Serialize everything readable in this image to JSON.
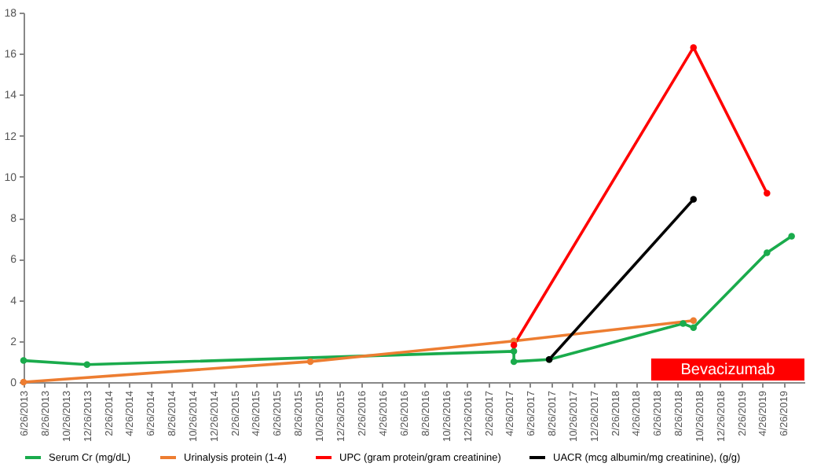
{
  "chart_data": {
    "type": "line",
    "marker": "circle",
    "legend": "bottom",
    "xlim": [
      "2013-06-26",
      "2019-08-26"
    ],
    "xticks": [
      {
        "value": "2013-06-26",
        "label": "6/26/2013"
      },
      {
        "value": "2013-08-26",
        "label": "8/26/2013"
      },
      {
        "value": "2013-10-26",
        "label": "10/26/2013"
      },
      {
        "value": "2013-12-26",
        "label": "12/26/2013"
      },
      {
        "value": "2014-02-26",
        "label": "2/26/2014"
      },
      {
        "value": "2014-04-26",
        "label": "4/26/2014"
      },
      {
        "value": "2014-06-26",
        "label": "6/26/2014"
      },
      {
        "value": "2014-08-26",
        "label": "8/26/2014"
      },
      {
        "value": "2014-10-26",
        "label": "10/26/2014"
      },
      {
        "value": "2014-12-26",
        "label": "12/26/2014"
      },
      {
        "value": "2015-02-26",
        "label": "2/26/2015"
      },
      {
        "value": "2015-04-26",
        "label": "4/26/2015"
      },
      {
        "value": "2015-06-26",
        "label": "6/26/2015"
      },
      {
        "value": "2015-08-26",
        "label": "8/26/2015"
      },
      {
        "value": "2015-10-26",
        "label": "10/26/2015"
      },
      {
        "value": "2015-12-26",
        "label": "12/26/2015"
      },
      {
        "value": "2016-02-26",
        "label": "2/26/2016"
      },
      {
        "value": "2016-04-26",
        "label": "4/26/2016"
      },
      {
        "value": "2016-06-26",
        "label": "6/26/2016"
      },
      {
        "value": "2016-08-26",
        "label": "8/26/2016"
      },
      {
        "value": "2016-10-26",
        "label": "10/26/2016"
      },
      {
        "value": "2016-12-26",
        "label": "12/26/2016"
      },
      {
        "value": "2017-02-26",
        "label": "2/26/2017"
      },
      {
        "value": "2017-04-26",
        "label": "4/26/2017"
      },
      {
        "value": "2017-06-26",
        "label": "6/26/2017"
      },
      {
        "value": "2017-08-26",
        "label": "8/26/2017"
      },
      {
        "value": "2017-10-26",
        "label": "10/26/2017"
      },
      {
        "value": "2017-12-26",
        "label": "12/26/2017"
      },
      {
        "value": "2018-02-26",
        "label": "2/26/2018"
      },
      {
        "value": "2018-04-26",
        "label": "4/26/2018"
      },
      {
        "value": "2018-06-26",
        "label": "6/26/2018"
      },
      {
        "value": "2018-08-26",
        "label": "8/26/2018"
      },
      {
        "value": "2018-10-26",
        "label": "10/26/2018"
      },
      {
        "value": "2018-12-26",
        "label": "12/26/2018"
      },
      {
        "value": "2019-02-26",
        "label": "2/26/2019"
      },
      {
        "value": "2019-04-26",
        "label": "4/26/2019"
      },
      {
        "value": "2019-06-26",
        "label": "6/26/2019"
      }
    ],
    "ylim": [
      0,
      18
    ],
    "yticks": [
      0,
      2,
      4,
      6,
      8,
      10,
      12,
      14,
      16,
      18
    ],
    "series": [
      {
        "name": "Serum Cr (mg/dL)",
        "color": "#1aab4c",
        "x": [
          "2013-06-26",
          "2013-12-26",
          "2017-05-10",
          "2017-05-10",
          "2017-08-20",
          "2018-09-10",
          "2018-10-10",
          "2019-05-10",
          "2019-07-20"
        ],
        "values": [
          1.05,
          0.85,
          1.5,
          1.0,
          1.1,
          2.85,
          2.65,
          6.3,
          7.1
        ]
      },
      {
        "name": "Urinalysis protein (1-4)",
        "color": "#ed7d31",
        "x": [
          "2013-06-26",
          "2015-10-01",
          "2017-05-10",
          "2018-10-10"
        ],
        "values": [
          0,
          1,
          2,
          3
        ]
      },
      {
        "name": "UPC (gram protein/gram creatinine)",
        "color": "#ff0000",
        "x": [
          "2017-05-10",
          "2018-10-10",
          "2019-05-10"
        ],
        "values": [
          1.8,
          16.3,
          9.2
        ]
      },
      {
        "name": "UACR (mcg albumin/mg creatinine), (g/g)",
        "color": "#000000",
        "x": [
          "2017-08-20",
          "2018-10-10"
        ],
        "values": [
          1.1,
          8.9
        ]
      }
    ],
    "bands": [
      {
        "axis": "x",
        "from": "2018-06-10",
        "to": "2019-08-26",
        "label": "Bevacizumab",
        "color": "#ff0000"
      }
    ]
  }
}
